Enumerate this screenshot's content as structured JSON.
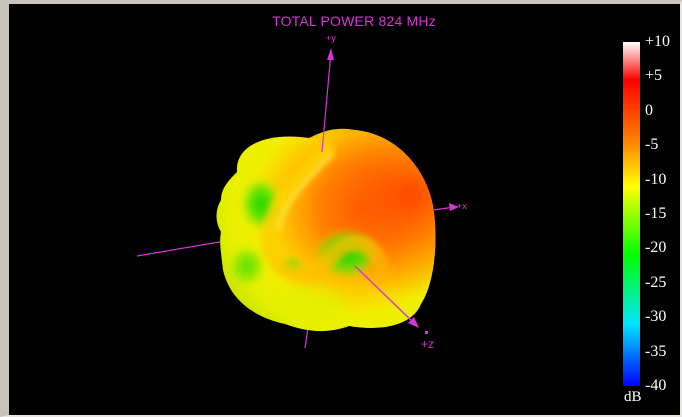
{
  "chart_data": {
    "type": "radiation-pattern-3d",
    "title": "TOTAL POWER 824 MHz",
    "axes": [
      "+y",
      "+x",
      "+z"
    ],
    "colorbar": {
      "unit": "dB",
      "range": [
        -40,
        10
      ],
      "ticks": [
        "+10",
        "+5",
        "0",
        "-5",
        "-10",
        "-15",
        "-20",
        "-25",
        "-30",
        "-35",
        "-40"
      ],
      "tick_values": [
        10,
        5,
        0,
        -5,
        -10,
        -15,
        -20,
        -25,
        -30,
        -35,
        -40
      ],
      "colormap": [
        "#ffffff",
        "#ff0000",
        "#ff8c00",
        "#ffff00",
        "#00ff00",
        "#00e5ff",
        "#0000ff"
      ]
    }
  },
  "colors": {
    "axis": "#d338d3",
    "background": "#000000"
  }
}
